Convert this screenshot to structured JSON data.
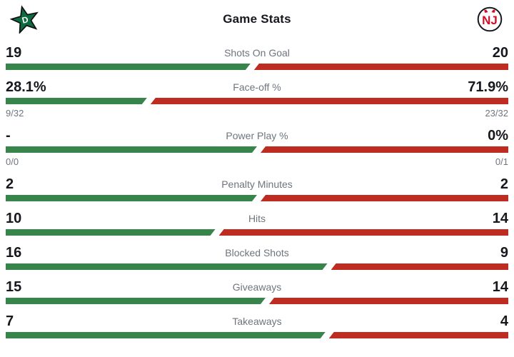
{
  "header": {
    "title": "Game Stats",
    "home_logo": "dallas-stars-logo",
    "away_logo": "new-jersey-devils-logo"
  },
  "colors": {
    "home_bar": "#38854B",
    "away_bar": "#BE2B20",
    "home_logo_green": "#0D6B3F",
    "away_logo_red": "#CE1126",
    "label_gray": "#6E757E",
    "value_black": "#16181D"
  },
  "chart_data": {
    "type": "bar",
    "title": "Game Stats",
    "legend_position": "none",
    "series": [
      {
        "name": "home",
        "values_text": [
          "19",
          "28.1%",
          "-",
          "2",
          "10",
          "16",
          "15",
          "7"
        ]
      },
      {
        "name": "away",
        "values_text": [
          "20",
          "71.9%",
          "0%",
          "2",
          "14",
          "9",
          "14",
          "4"
        ]
      }
    ],
    "categories": [
      "Shots On Goal",
      "Face-off %",
      "Power Play %",
      "Penalty Minutes",
      "Hits",
      "Blocked Shots",
      "Giveaways",
      "Takeaways"
    ]
  },
  "rows": [
    {
      "label": "Shots On Goal",
      "home": "19",
      "away": "20",
      "home_pct": 48.7
    },
    {
      "label": "Face-off %",
      "home": "28.1%",
      "away": "71.9%",
      "home_pct": 28.1,
      "home_sub": "9/32",
      "away_sub": "23/32"
    },
    {
      "label": "Power Play %",
      "home": "-",
      "away": "0%",
      "home_pct": 50,
      "home_sub": "0/0",
      "away_sub": "0/1"
    },
    {
      "label": "Penalty Minutes",
      "home": "2",
      "away": "2",
      "home_pct": 50
    },
    {
      "label": "Hits",
      "home": "10",
      "away": "14",
      "home_pct": 41.7
    },
    {
      "label": "Blocked Shots",
      "home": "16",
      "away": "9",
      "home_pct": 64.0
    },
    {
      "label": "Giveaways",
      "home": "15",
      "away": "14",
      "home_pct": 51.7
    },
    {
      "label": "Takeaways",
      "home": "7",
      "away": "4",
      "home_pct": 63.6
    }
  ]
}
